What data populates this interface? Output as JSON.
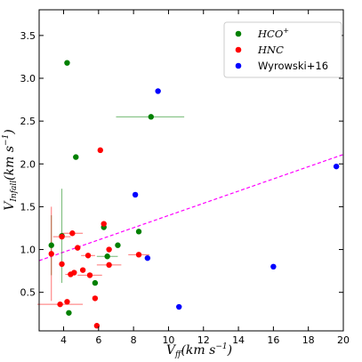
{
  "chart_data": {
    "type": "scatter",
    "xlabel": "V_ff (km s^-1)",
    "xlabel_parts": {
      "main": "V",
      "sub": "ff",
      "unit_open": "(",
      "unit": "km s",
      "unit_exp": "−1",
      "unit_close": ")"
    },
    "ylabel": "V_Infall (km s^-1)",
    "ylabel_parts": {
      "main": "V",
      "sub": "Infall",
      "unit_open": "(",
      "unit": "km s",
      "unit_exp": "−1",
      "unit_close": ")"
    },
    "xlim": [
      2.6,
      20.0
    ],
    "ylim": [
      0.05,
      3.8
    ],
    "xticks": [
      4,
      6,
      8,
      10,
      12,
      14,
      16,
      18,
      20
    ],
    "yticks": [
      0.5,
      1.0,
      1.5,
      2.0,
      2.5,
      3.0,
      3.5
    ],
    "xtick_labels": [
      "4",
      "6",
      "8",
      "10",
      "12",
      "14",
      "16",
      "18",
      "20"
    ],
    "ytick_labels": [
      "0.5",
      "1.0",
      "1.5",
      "2.0",
      "2.5",
      "3.0",
      "3.5"
    ],
    "grid": false,
    "legend_position": "top-right",
    "legend_entries": [
      "HCO",
      "+",
      "HNC",
      "Wyrowski+16"
    ],
    "fit_line": {
      "x": [
        2.6,
        20.0
      ],
      "y": [
        0.87,
        2.11
      ],
      "color": "#ff00ff",
      "style": "dashed"
    },
    "series": [
      {
        "name": "HCO+",
        "color": "#008000",
        "points": [
          {
            "x": 4.2,
            "y": 3.18
          },
          {
            "x": 9.0,
            "y": 2.55,
            "xerr": [
              2.0,
              1.9
            ]
          },
          {
            "x": 4.7,
            "y": 2.08
          },
          {
            "x": 6.3,
            "y": 1.26
          },
          {
            "x": 8.3,
            "y": 1.21
          },
          {
            "x": 3.9,
            "y": 1.16,
            "yerr": [
              0.55,
              0.55
            ]
          },
          {
            "x": 3.3,
            "y": 1.05,
            "yerr": [
              0.35,
              0.35
            ]
          },
          {
            "x": 7.1,
            "y": 1.05
          },
          {
            "x": 6.5,
            "y": 0.92,
            "xerr": [
              0.6,
              0.6
            ]
          },
          {
            "x": 5.8,
            "y": 0.61
          },
          {
            "x": 4.3,
            "y": 0.26
          }
        ]
      },
      {
        "name": "HNC",
        "color": "#ff0000",
        "points": [
          {
            "x": 6.1,
            "y": 2.16
          },
          {
            "x": 6.3,
            "y": 1.3
          },
          {
            "x": 4.5,
            "y": 1.19,
            "xerr": [
              0.6,
              0.6
            ]
          },
          {
            "x": 3.9,
            "y": 1.15,
            "xerr": [
              0.5,
              0.5
            ]
          },
          {
            "x": 4.8,
            "y": 1.02
          },
          {
            "x": 6.6,
            "y": 1.0
          },
          {
            "x": 3.3,
            "y": 0.95,
            "yerr": [
              0.55,
              0.55
            ]
          },
          {
            "x": 5.4,
            "y": 0.93,
            "xerr": [
              0.4,
              0.4
            ]
          },
          {
            "x": 8.3,
            "y": 0.94,
            "xerr": [
              0.6,
              0.6
            ]
          },
          {
            "x": 3.9,
            "y": 0.83
          },
          {
            "x": 6.6,
            "y": 0.82,
            "xerr": [
              0.7,
              0.7
            ]
          },
          {
            "x": 5.1,
            "y": 0.76
          },
          {
            "x": 4.6,
            "y": 0.73
          },
          {
            "x": 4.4,
            "y": 0.71,
            "xerr": [
              0.3,
              0.3
            ]
          },
          {
            "x": 5.5,
            "y": 0.7,
            "xerr": [
              0.7,
              0.7
            ]
          },
          {
            "x": 5.8,
            "y": 0.43
          },
          {
            "x": 4.2,
            "y": 0.39
          },
          {
            "x": 3.8,
            "y": 0.36,
            "xerr": [
              1.3,
              1.3
            ]
          },
          {
            "x": 5.9,
            "y": 0.11
          }
        ]
      },
      {
        "name": "Wyrowski+16",
        "color": "#0000ff",
        "points": [
          {
            "x": 9.4,
            "y": 2.85
          },
          {
            "x": 19.6,
            "y": 1.97
          },
          {
            "x": 8.1,
            "y": 1.64
          },
          {
            "x": 8.8,
            "y": 0.9
          },
          {
            "x": 16.0,
            "y": 0.8
          },
          {
            "x": 10.6,
            "y": 0.33
          }
        ]
      }
    ]
  }
}
